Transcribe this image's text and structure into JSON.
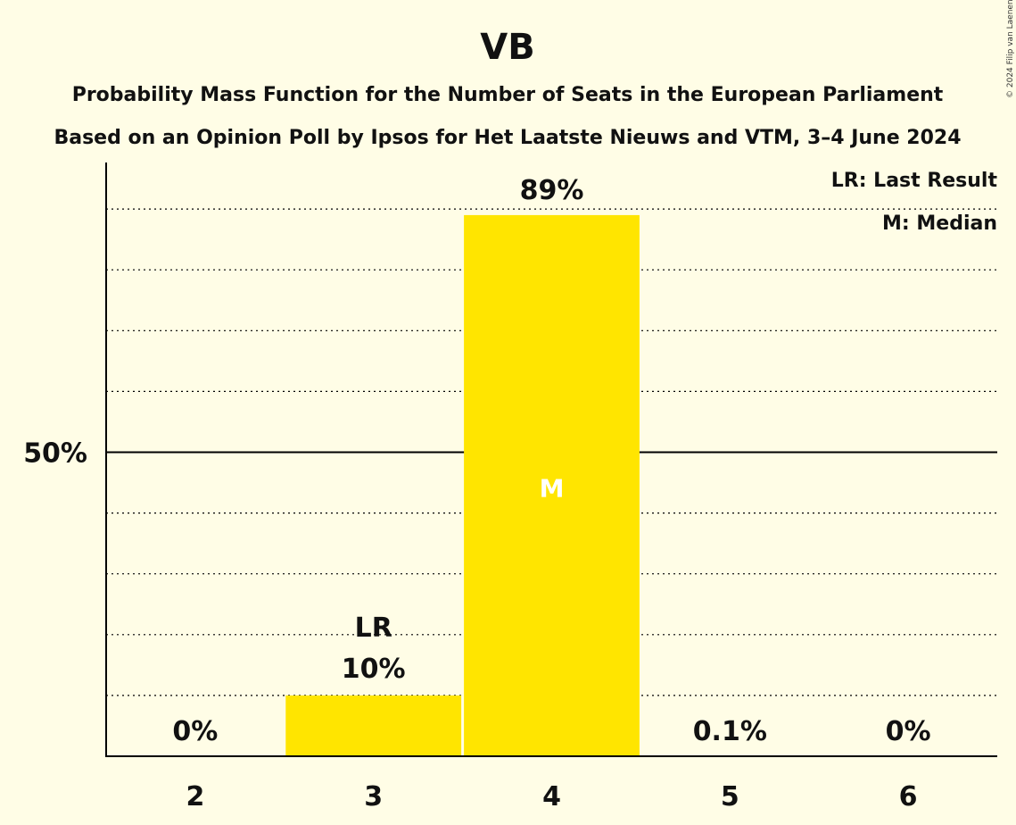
{
  "copyright": "© 2024 Filip van Laenen",
  "chart_data": {
    "type": "bar",
    "title": "VB",
    "subtitle": "Probability Mass Function for the Number of Seats in the European Parliament",
    "subtitle2": "Based on an Opinion Poll by Ipsos for Het Laatste Nieuws and VTM, 3–4 June 2024",
    "categories": [
      "2",
      "3",
      "4",
      "5",
      "6"
    ],
    "values": [
      0,
      10,
      89,
      0.1,
      0
    ],
    "value_labels": [
      "0%",
      "10%",
      "89%",
      "0.1%",
      "0%"
    ],
    "ylim": [
      0,
      100
    ],
    "ytick_label": "50%",
    "ytick_value": 50,
    "gridlines": [
      10,
      20,
      30,
      40,
      60,
      70,
      80,
      90
    ],
    "bar_color": "#FFE500",
    "last_result": {
      "category": "3",
      "label": "LR"
    },
    "median": {
      "category": "4",
      "label": "M"
    },
    "legend": [
      "LR: Last Result",
      "M: Median"
    ],
    "legend_position": "top-right"
  }
}
